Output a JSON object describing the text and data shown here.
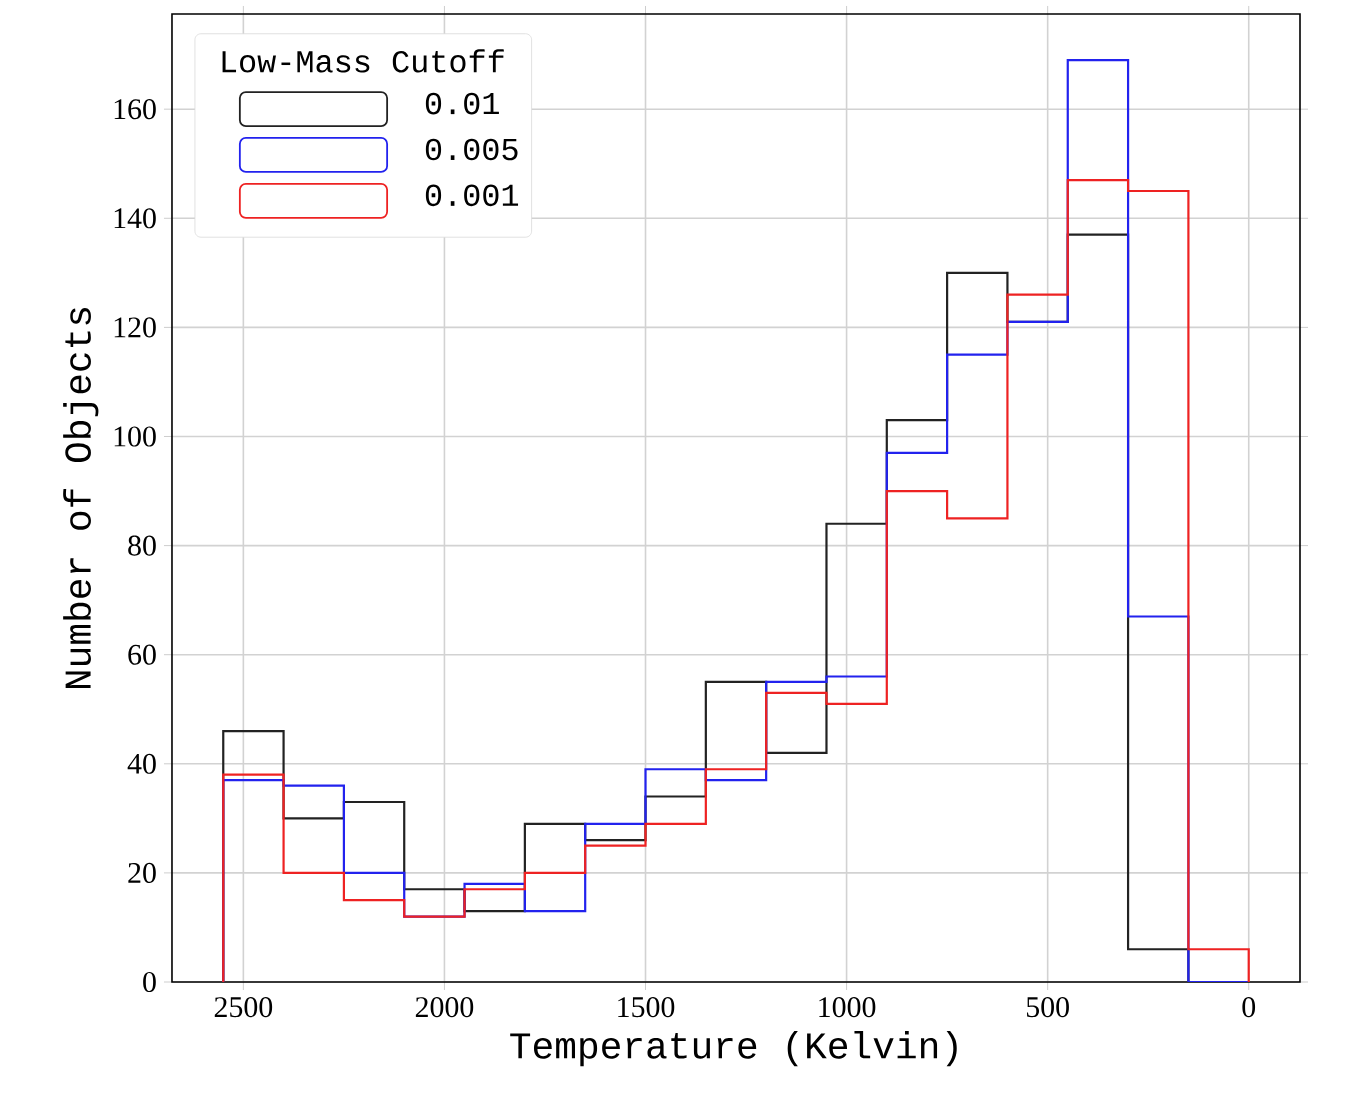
{
  "chart_data": {
    "type": "histogram",
    "xlabel": "Temperature (Kelvin)",
    "ylabel": "Number of Objects",
    "legend_title": "Low-Mass Cutoff",
    "bins": [
      2550,
      2400,
      2250,
      2100,
      1950,
      1800,
      1650,
      1500,
      1350,
      1200,
      1050,
      900,
      750,
      600,
      450,
      300,
      150,
      0
    ],
    "series": [
      {
        "name": "0.01",
        "color": "#222222",
        "values": [
          46,
          30,
          33,
          17,
          13,
          29,
          26,
          34,
          55,
          42,
          84,
          103,
          130,
          121,
          137,
          6,
          0
        ]
      },
      {
        "name": "0.005",
        "color": "#2222ee",
        "values": [
          37,
          36,
          20,
          12,
          18,
          13,
          29,
          39,
          37,
          55,
          56,
          97,
          115,
          121,
          169,
          67,
          0
        ]
      },
      {
        "name": "0.001",
        "color": "#ee2222",
        "values": [
          38,
          20,
          15,
          12,
          17,
          20,
          25,
          29,
          39,
          53,
          51,
          90,
          85,
          126,
          147,
          145,
          6
        ]
      }
    ],
    "xlim": [
      2677.5,
      -127.5
    ],
    "ylim": [
      0,
      177.45
    ],
    "xticks": [
      2500,
      2000,
      1500,
      1000,
      500,
      0
    ],
    "yticks": [
      0,
      20,
      40,
      60,
      80,
      100,
      120,
      140,
      160
    ],
    "grid": true,
    "legend": "top left"
  }
}
